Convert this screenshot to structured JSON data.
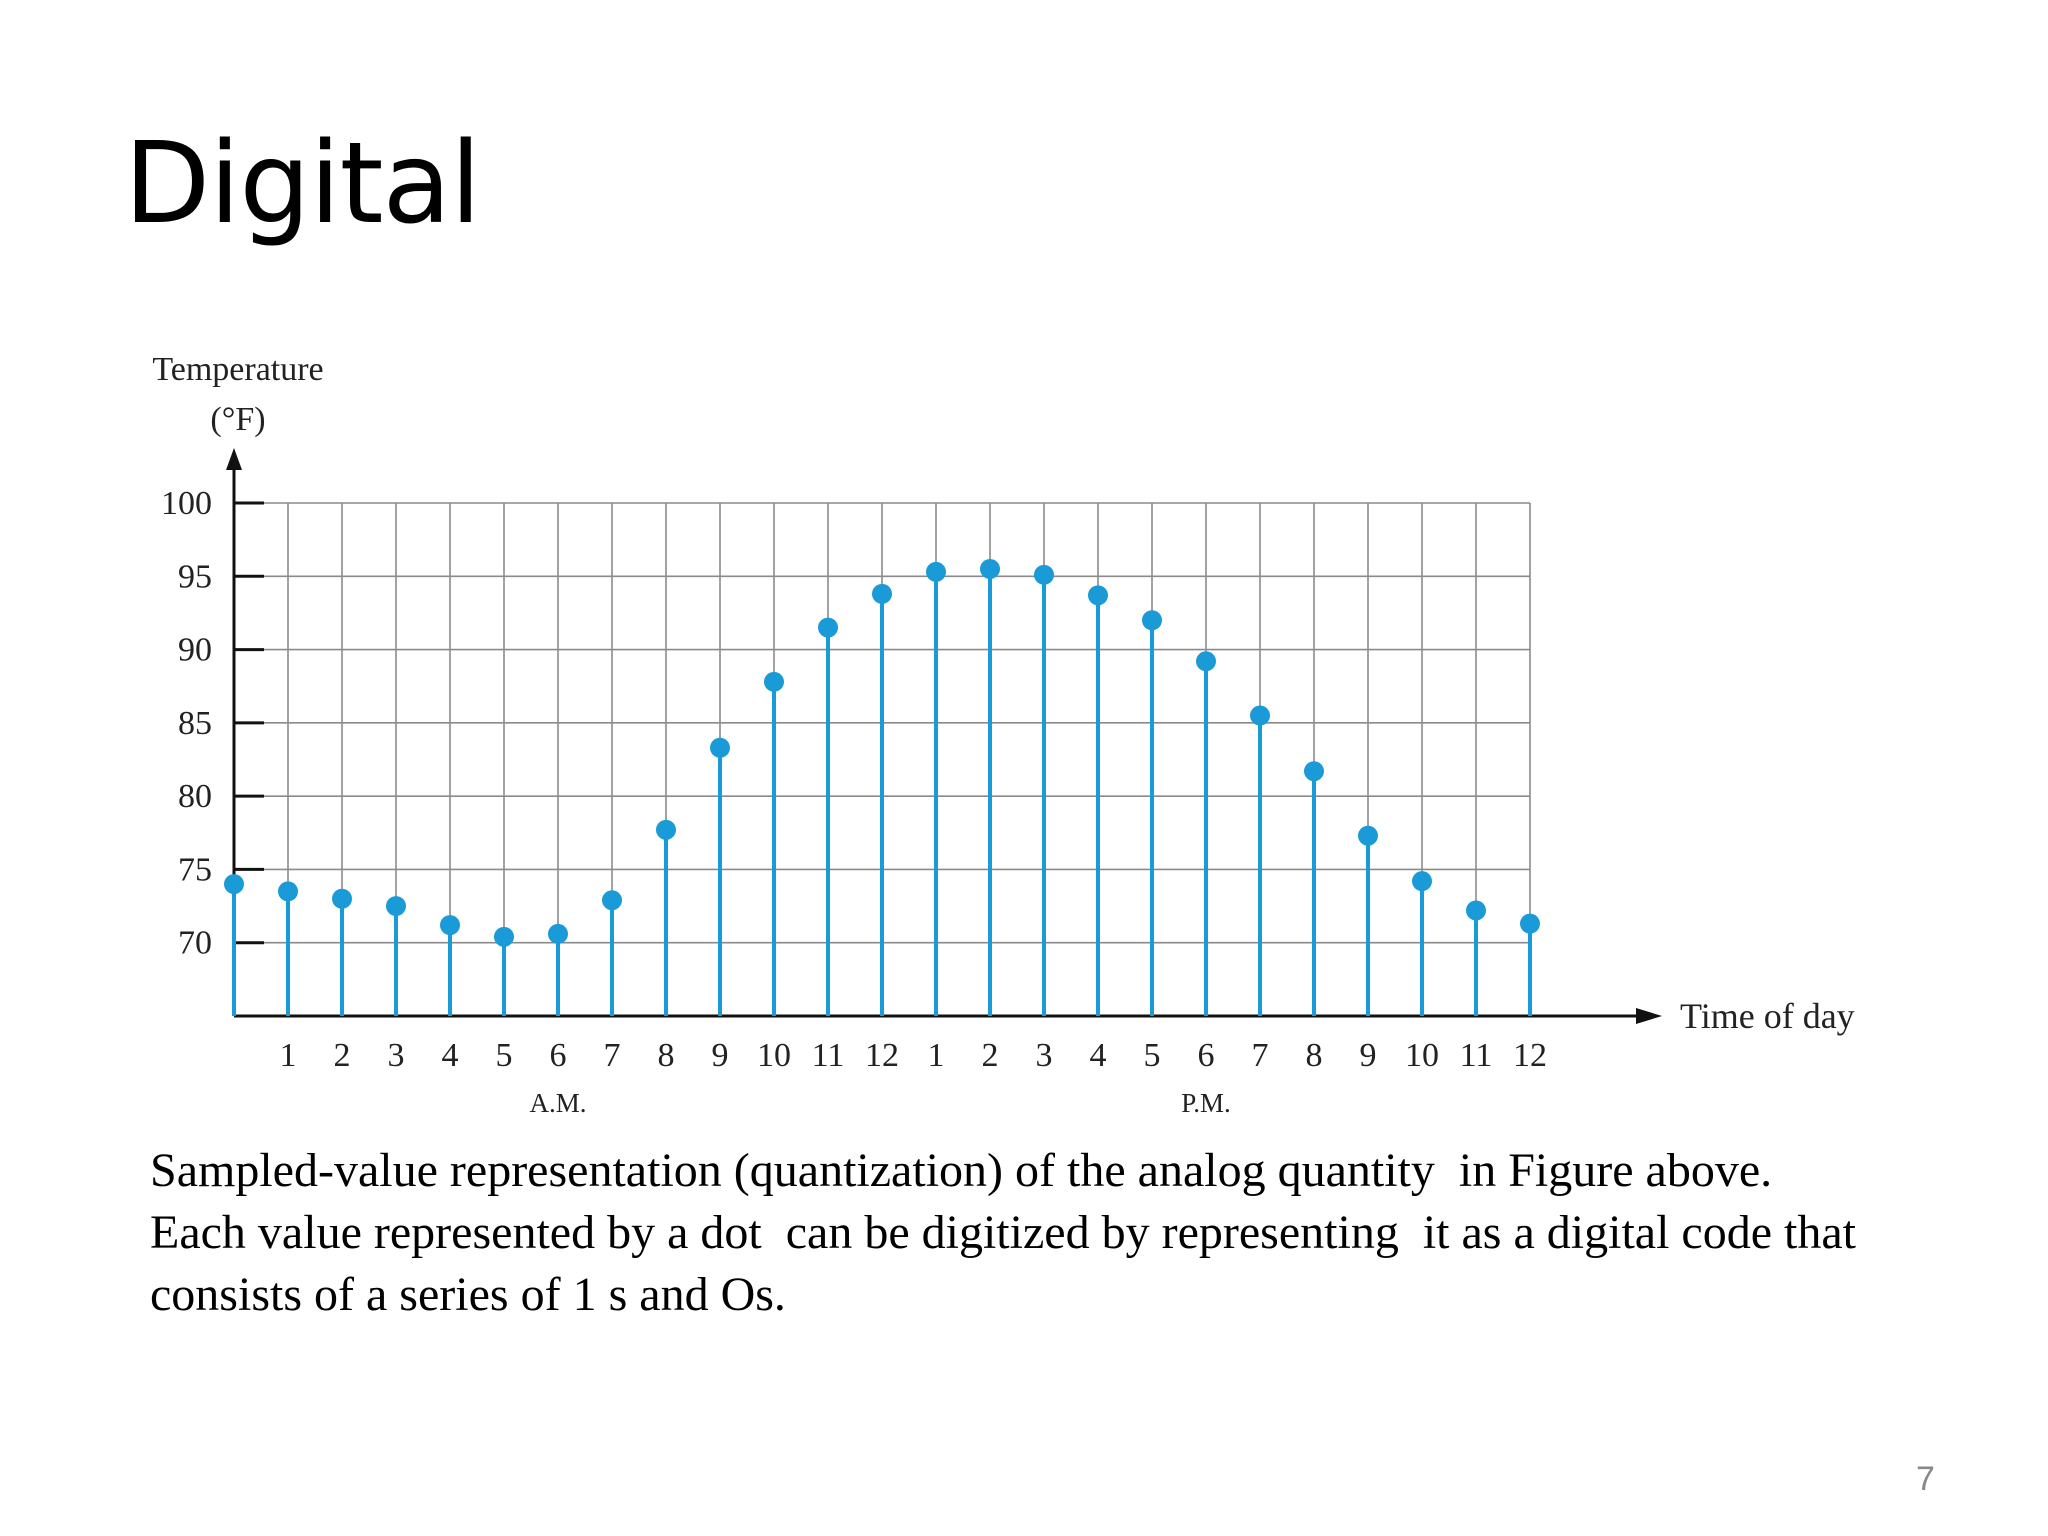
{
  "slide": {
    "title": "Digital",
    "caption_lines": [
      "Sampled-value representation (quantization) of the analog quantity  in Figure above.",
      "Each value represented by a dot  can be digitized by representing  it as a digital code that",
      "consists of a series of 1 s and Os."
    ],
    "page_number": "7"
  },
  "chart_data": {
    "type": "scatter",
    "title": "",
    "ylabel_lines": [
      "Temperature",
      "(°F)"
    ],
    "xlabel": "Time of day",
    "period_labels": [
      {
        "text": "A.M.",
        "at_index": 6
      },
      {
        "text": "P.M.",
        "at_index": 18
      }
    ],
    "x_ticks": [
      "1",
      "2",
      "3",
      "4",
      "5",
      "6",
      "7",
      "8",
      "9",
      "10",
      "11",
      "12",
      "1",
      "2",
      "3",
      "4",
      "5",
      "6",
      "7",
      "8",
      "9",
      "10",
      "11",
      "12"
    ],
    "y_ticks": [
      70,
      75,
      80,
      85,
      90,
      95,
      100
    ],
    "ylim": [
      65,
      100
    ],
    "grid": true,
    "stems": true,
    "point_color": "#1a9ad6",
    "values": [
      74,
      73.5,
      73,
      72.5,
      71.2,
      70.4,
      70.6,
      72.9,
      77.7,
      83.3,
      87.8,
      91.5,
      93.8,
      95.3,
      95.5,
      95.1,
      93.7,
      92,
      89.2,
      85.5,
      81.7,
      77.3,
      74.2,
      72.2,
      71.3
    ]
  }
}
